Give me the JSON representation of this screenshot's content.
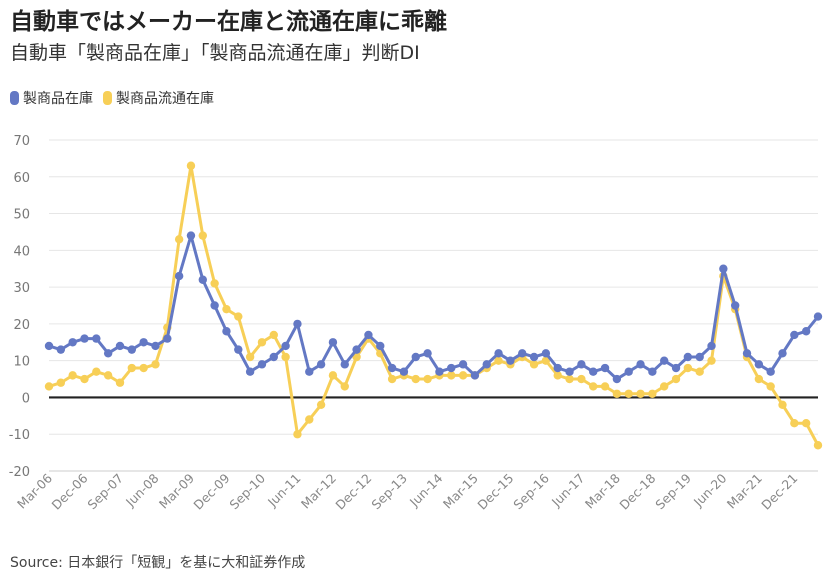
{
  "title": "自動車ではメーカー在庫と流通在庫に乖離",
  "subtitle": "自動車「製商品在庫」「製商品流通在庫」判断DI",
  "source": "Source: 日本銀行「短観」を基に大和証券作成",
  "colors": {
    "blue": "#6378c4",
    "yellow": "#f7cf57",
    "zero_line": "#222222",
    "grid": "#e6e6e6"
  },
  "chart_data": {
    "type": "line",
    "title": "",
    "xlabel": "",
    "ylabel": "",
    "ylim": [
      -20,
      70
    ],
    "yticks": [
      -20,
      -10,
      0,
      10,
      20,
      30,
      40,
      50,
      60,
      70
    ],
    "grid": true,
    "legend_position": "top-left",
    "x_tick_labels": [
      "Mar-06",
      "Dec-06",
      "Sep-07",
      "Jun-08",
      "Mar-09",
      "Dec-09",
      "Sep-10",
      "Jun-11",
      "Mar-12",
      "Dec-12",
      "Sep-13",
      "Jun-14",
      "Mar-15",
      "Dec-15",
      "Sep-16",
      "Jun-17",
      "Mar-18",
      "Dec-18",
      "Sep-19",
      "Jun-20",
      "Mar-21",
      "Dec-21"
    ],
    "series": [
      {
        "name": "製商品在庫",
        "color": "#6378c4",
        "values": [
          14,
          13,
          15,
          16,
          16,
          12,
          14,
          13,
          15,
          14,
          16,
          33,
          44,
          32,
          25,
          18,
          13,
          7,
          9,
          11,
          14,
          20,
          7,
          9,
          15,
          9,
          13,
          17,
          14,
          8,
          7,
          11,
          12,
          7,
          8,
          9,
          6,
          9,
          12,
          10,
          12,
          11,
          12,
          8,
          7,
          9,
          7,
          8,
          5,
          7,
          9,
          7,
          10,
          8,
          11,
          11,
          14,
          35,
          25,
          12,
          9,
          7,
          12,
          17,
          18,
          22
        ]
      },
      {
        "name": "製商品流通在庫",
        "color": "#f7cf57",
        "values": [
          3,
          4,
          6,
          5,
          7,
          6,
          4,
          8,
          8,
          9,
          19,
          43,
          63,
          44,
          31,
          24,
          22,
          11,
          15,
          17,
          11,
          -10,
          -6,
          -2,
          6,
          3,
          11,
          16,
          12,
          5,
          6,
          5,
          5,
          6,
          6,
          6,
          6,
          8,
          10,
          9,
          11,
          9,
          10,
          6,
          5,
          5,
          3,
          3,
          1,
          1,
          1,
          1,
          3,
          5,
          8,
          7,
          10,
          33,
          24,
          11,
          5,
          3,
          -2,
          -7,
          -7,
          -13
        ]
      }
    ]
  }
}
